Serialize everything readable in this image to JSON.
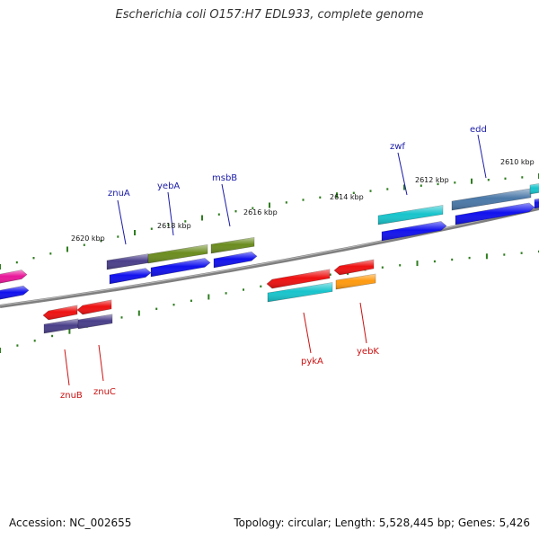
{
  "title": "Escherichia coli O157:H7 EDL933, complete genome",
  "accession": "Accession: NC_002655",
  "topology": "Topology: circular; Length: 5,528,445 bp; Genes: 5,426",
  "colors": {
    "backbone": "#808080",
    "tick": "#2e7d1f",
    "top_label": "#1a1aa8",
    "bottom_label": "#cc1111"
  },
  "kbp_labels": [
    "2620 kbp",
    "2618 kbp",
    "2616 kbp",
    "2614 kbp",
    "2612 kbp",
    "2610 kbp"
  ],
  "gene_labels": {
    "top": [
      "znuA",
      "yebA",
      "msbB",
      "zwf",
      "edd"
    ],
    "bottom": [
      "znuB",
      "znuC",
      "pykA",
      "yebK"
    ]
  }
}
